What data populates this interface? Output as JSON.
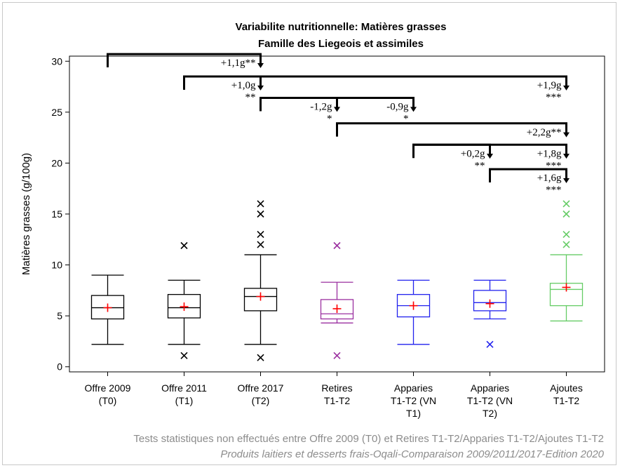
{
  "chart_data": {
    "type": "boxplot",
    "title": "Variabilite nutritionnelle: Matières grasses",
    "subtitle": "Famille des Liegeois et assimiles",
    "ylabel": "Matières grasses (g/100g)",
    "ylim": [
      -0.5,
      30.5
    ],
    "yticks": [
      0,
      5,
      10,
      15,
      20,
      25,
      30
    ],
    "grid": false,
    "categories": [
      [
        "Offre 2009",
        "(T0)"
      ],
      [
        "Offre 2011",
        "(T1)"
      ],
      [
        "Offre 2017",
        "(T2)"
      ],
      [
        "Retires",
        "T1-T2"
      ],
      [
        "Apparies",
        "T1-T2 (VN",
        "T1)"
      ],
      [
        "Apparies",
        "T1-T2 (VN",
        "T2)"
      ],
      [
        "Ajoutes",
        "T1-T2"
      ]
    ],
    "boxes": [
      {
        "whisker_low": 2.2,
        "q1": 4.7,
        "median": 5.8,
        "q3": 7.0,
        "whisker_high": 9.0,
        "mean": 5.8,
        "outliers": [],
        "color": "#000000"
      },
      {
        "whisker_low": 2.2,
        "q1": 4.8,
        "median": 5.8,
        "q3": 7.1,
        "whisker_high": 8.5,
        "mean": 5.9,
        "outliers": [
          1.1,
          11.9
        ],
        "color": "#000000"
      },
      {
        "whisker_low": 2.2,
        "q1": 5.5,
        "median": 6.9,
        "q3": 7.7,
        "whisker_high": 11.0,
        "mean": 6.9,
        "outliers": [
          0.9,
          12.0,
          13.0,
          15.0,
          16.0
        ],
        "color": "#000000"
      },
      {
        "whisker_low": 4.3,
        "q1": 4.7,
        "median": 5.2,
        "q3": 6.6,
        "whisker_high": 8.3,
        "mean": 5.7,
        "outliers": [
          1.1,
          11.9
        ],
        "color": "#9b30a0"
      },
      {
        "whisker_low": 2.2,
        "q1": 4.9,
        "median": 6.0,
        "q3": 7.1,
        "whisker_high": 8.5,
        "mean": 6.0,
        "outliers": [],
        "color": "#2222ee"
      },
      {
        "whisker_low": 4.7,
        "q1": 5.5,
        "median": 6.3,
        "q3": 7.5,
        "whisker_high": 8.5,
        "mean": 6.2,
        "outliers": [
          2.2
        ],
        "color": "#2222ee"
      },
      {
        "whisker_low": 4.5,
        "q1": 6.0,
        "median": 7.6,
        "q3": 8.2,
        "whisker_high": 11.0,
        "mean": 7.8,
        "outliers": [
          12.0,
          13.0,
          15.0,
          16.0
        ],
        "color": "#66cc66"
      }
    ],
    "mean_marker_color": "#ff0000",
    "comparisons": [
      {
        "from": 0,
        "to": 2,
        "level": 30.7,
        "end": 29.4,
        "labels": [
          "+1,1g**"
        ]
      },
      {
        "from": 1,
        "to": 2,
        "level": 28.5,
        "end": 27.2,
        "labels": [
          "+1,0g",
          "**"
        ]
      },
      {
        "from": 1,
        "to": 6,
        "level": 28.5,
        "end": 27.2,
        "labels": [
          "+1,9g",
          "***"
        ]
      },
      {
        "from": 2,
        "to": 3,
        "level": 26.4,
        "end": 25.1,
        "labels": [
          "-1,2g",
          "*"
        ]
      },
      {
        "from": 2,
        "to": 4,
        "level": 26.4,
        "end": 25.1,
        "labels": [
          "-0,9g",
          "*"
        ]
      },
      {
        "from": 3,
        "to": 6,
        "level": 23.9,
        "end": 22.6,
        "labels": [
          "+2,2g**"
        ]
      },
      {
        "from": 4,
        "to": 5,
        "level": 21.8,
        "end": 20.5,
        "labels": [
          "+0,2g",
          "**"
        ]
      },
      {
        "from": 4,
        "to": 6,
        "level": 21.8,
        "end": 20.5,
        "labels": [
          "+1,8g",
          "***"
        ]
      },
      {
        "from": 5,
        "to": 6,
        "level": 19.4,
        "end": 18.1,
        "labels": [
          "+1,6g",
          "***"
        ]
      }
    ]
  },
  "footer": {
    "line1": "Tests statistiques non effectués entre Offre 2009 (T0) et Retires T1-T2/Apparies T1-T2/Ajoutes T1-T2",
    "line2": "Produits laitiers et desserts frais-Oqali-Comparaison 2009/2011/2017-Edition 2020"
  }
}
